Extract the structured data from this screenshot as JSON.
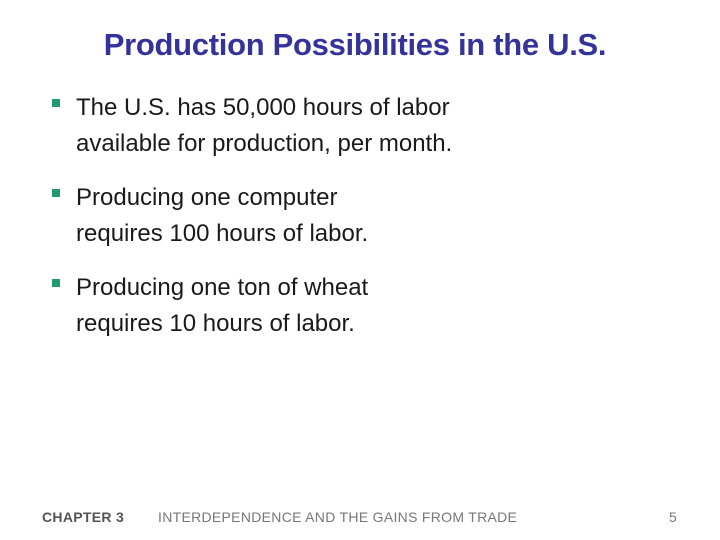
{
  "slide": {
    "title": "Production Possibilities in the U.S.",
    "bullets": [
      {
        "lines": [
          "The U.S. has 50,000 hours of labor",
          "available for production, per month."
        ]
      },
      {
        "lines": [
          "Producing one computer",
          "requires 100 hours of labor."
        ]
      },
      {
        "lines": [
          "Producing one ton of wheat",
          "requires 10 hours of labor."
        ]
      }
    ],
    "bullet_color": "#1f9a6e",
    "title_color": "#333399"
  },
  "footer": {
    "chapter": "CHAPTER 3",
    "subtitle": "INTERDEPENDENCE AND THE GAINS FROM TRADE",
    "page_number": "5"
  }
}
